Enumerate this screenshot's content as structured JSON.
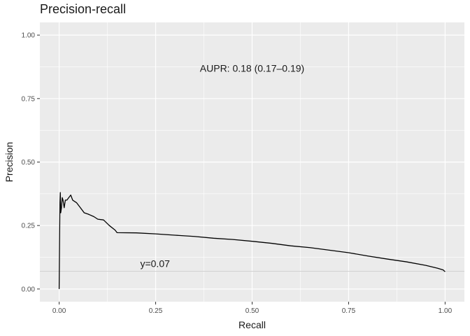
{
  "chart_data": {
    "type": "line",
    "title": "Precision-recall",
    "xlabel": "Recall",
    "ylabel": "Precision",
    "xlim": [
      -0.05,
      1.05
    ],
    "ylim": [
      -0.05,
      1.05
    ],
    "x_ticks": [
      0.0,
      0.25,
      0.5,
      0.75,
      1.0
    ],
    "x_tick_labels": [
      "0.00",
      "0.25",
      "0.50",
      "0.75",
      "1.00"
    ],
    "y_ticks": [
      0.0,
      0.25,
      0.5,
      0.75,
      1.0
    ],
    "y_tick_labels": [
      "0.00",
      "0.25",
      "0.50",
      "0.75",
      "1.00"
    ],
    "grid": true,
    "background": "#ebebeb",
    "grid_color": "#ffffff",
    "line_color": "#000000",
    "baseline": {
      "y": 0.07,
      "label": "y=0.07",
      "color": "#d0d0d0",
      "label_x": 0.21,
      "label_y": 0.1
    },
    "annotation": {
      "text": "AUPR: 0.18 (0.17–0.19)",
      "x": 0.5,
      "y": 0.87
    },
    "series": [
      {
        "x": [
          0.0,
          0.002,
          0.003,
          0.004,
          0.006,
          0.008,
          0.01,
          0.013,
          0.016,
          0.02,
          0.025,
          0.03,
          0.035,
          0.045,
          0.055,
          0.065,
          0.075,
          0.09,
          0.1,
          0.115,
          0.13,
          0.145,
          0.15,
          0.2,
          0.25,
          0.3,
          0.35,
          0.4,
          0.45,
          0.5,
          0.55,
          0.6,
          0.65,
          0.7,
          0.75,
          0.8,
          0.85,
          0.9,
          0.95,
          0.98,
          0.995,
          1.0
        ],
        "y": [
          0.0,
          0.34,
          0.38,
          0.3,
          0.32,
          0.36,
          0.35,
          0.32,
          0.35,
          0.35,
          0.36,
          0.37,
          0.35,
          0.34,
          0.32,
          0.3,
          0.295,
          0.285,
          0.275,
          0.272,
          0.25,
          0.232,
          0.222,
          0.221,
          0.217,
          0.212,
          0.207,
          0.2,
          0.195,
          0.188,
          0.18,
          0.17,
          0.163,
          0.153,
          0.143,
          0.13,
          0.118,
          0.107,
          0.093,
          0.082,
          0.075,
          0.068
        ]
      }
    ]
  }
}
